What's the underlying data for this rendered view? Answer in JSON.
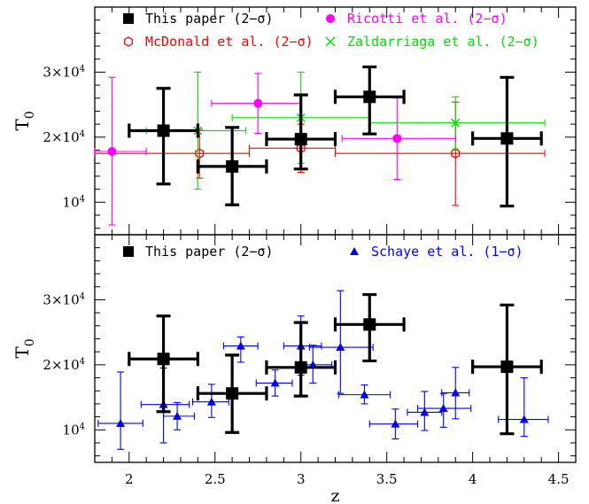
{
  "chart_data": [
    {
      "type": "scatter",
      "panel": "top",
      "ylabel": "T",
      "ylabel_sub": "0",
      "xlabel": "",
      "xlim": [
        1.8,
        4.6
      ],
      "ylim": [
        5000,
        40000
      ],
      "yticks": [
        {
          "value": 10000,
          "mant": "10",
          "exp": "4"
        },
        {
          "value": 20000,
          "mant": "2×10",
          "exp": "4"
        },
        {
          "value": 30000,
          "mant": "3×10",
          "exp": "4"
        }
      ],
      "legend": [
        {
          "label": "This paper (2−σ)",
          "marker": "square",
          "color": "#000000"
        },
        {
          "label": "Ricotti et al. (2−σ)",
          "marker": "circle",
          "color": "#ff00ff"
        },
        {
          "label": "McDonald et al. (2−σ)",
          "marker": "hexagon",
          "color": "#ff0000"
        },
        {
          "label": "Zaldarriaga et al. (2−σ)",
          "marker": "cross",
          "color": "#00dd00"
        }
      ],
      "series": [
        {
          "name": "McDonald et al. (2−σ)",
          "marker": "hexagon",
          "color": "#ff0000",
          "points": [
            {
              "x": 2.41,
              "y": 17500,
              "xlo": 1.8,
              "xhi": 2.7,
              "ylo": 13700,
              "yhi": 21200
            },
            {
              "x": 3.0,
              "y": 18300,
              "xlo": 2.7,
              "xhi": 3.2,
              "ylo": 14600,
              "yhi": 22000
            },
            {
              "x": 3.9,
              "y": 17500,
              "xlo": 3.2,
              "xhi": 4.42,
              "ylo": 9500,
              "yhi": 25400
            }
          ]
        },
        {
          "name": "Zaldarriaga et al. (2−σ)",
          "marker": "cross",
          "color": "#00dd00",
          "points": [
            {
              "x": 2.4,
              "y": 21000,
              "xlo": 2.1,
              "xhi": 2.68,
              "ylo": 12000,
              "yhi": 30000
            },
            {
              "x": 3.0,
              "y": 23000,
              "xlo": 2.6,
              "xhi": 3.4,
              "ylo": 16000,
              "yhi": 30000
            },
            {
              "x": 3.9,
              "y": 22200,
              "xlo": 3.4,
              "xhi": 4.42,
              "ylo": 18200,
              "yhi": 26200
            }
          ]
        },
        {
          "name": "Ricotti et al. (2−σ)",
          "marker": "circle",
          "color": "#ff00ff",
          "points": [
            {
              "x": 1.9,
              "y": 17800,
              "xlo": 1.8,
              "xhi": 2.1,
              "ylo": 6500,
              "yhi": 29200
            },
            {
              "x": 2.75,
              "y": 25200,
              "xlo": 2.48,
              "xhi": 3.0,
              "ylo": 20600,
              "yhi": 29800
            },
            {
              "x": 3.56,
              "y": 19800,
              "xlo": 3.24,
              "xhi": 3.9,
              "ylo": 13500,
              "yhi": 26000
            }
          ]
        },
        {
          "name": "This paper (2−σ)",
          "marker": "square",
          "color": "#000000",
          "points": [
            {
              "x": 2.2,
              "y": 21000,
              "xlo": 2.0,
              "xhi": 2.4,
              "ylo": 12800,
              "yhi": 27500
            },
            {
              "x": 2.6,
              "y": 15500,
              "xlo": 2.4,
              "xhi": 2.8,
              "ylo": 9600,
              "yhi": 21500
            },
            {
              "x": 3.0,
              "y": 19700,
              "xlo": 2.8,
              "xhi": 3.2,
              "ylo": 15100,
              "yhi": 26500
            },
            {
              "x": 3.4,
              "y": 26200,
              "xlo": 3.2,
              "xhi": 3.6,
              "ylo": 20500,
              "yhi": 30800
            },
            {
              "x": 4.2,
              "y": 19800,
              "xlo": 4.0,
              "xhi": 4.4,
              "ylo": 9400,
              "yhi": 29200
            }
          ]
        }
      ]
    },
    {
      "type": "scatter",
      "panel": "bottom",
      "ylabel": "T",
      "ylabel_sub": "0",
      "xlabel": "z",
      "xlim": [
        1.8,
        4.6
      ],
      "ylim": [
        5000,
        40000
      ],
      "xticks": [
        2,
        2.5,
        3,
        3.5,
        4,
        4.5
      ],
      "xtick_labels": [
        "2",
        "2.5",
        "3",
        "3.5",
        "4",
        "4.5"
      ],
      "yticks": [
        {
          "value": 10000,
          "mant": "10",
          "exp": "4"
        },
        {
          "value": 20000,
          "mant": "2×10",
          "exp": "4"
        },
        {
          "value": 30000,
          "mant": "3×10",
          "exp": "4"
        }
      ],
      "legend": [
        {
          "label": "This paper (2−σ)",
          "marker": "square",
          "color": "#000000"
        },
        {
          "label": "Schaye et al. (1−σ)",
          "marker": "triangle",
          "color": "#0000ff"
        }
      ],
      "series": [
        {
          "name": "Schaye et al. (1−σ)",
          "marker": "triangle",
          "color": "#0000ff",
          "points": [
            {
              "x": 1.95,
              "y": 11000,
              "xlo": 1.82,
              "xhi": 2.08,
              "ylo": 7000,
              "yhi": 18900
            },
            {
              "x": 2.2,
              "y": 13900,
              "xlo": 2.07,
              "xhi": 2.35,
              "ylo": 8000,
              "yhi": 19500
            },
            {
              "x": 2.28,
              "y": 12100,
              "xlo": 2.2,
              "xhi": 2.38,
              "ylo": 10000,
              "yhi": 14200
            },
            {
              "x": 2.48,
              "y": 14300,
              "xlo": 2.37,
              "xhi": 2.58,
              "ylo": 11900,
              "yhi": 17000
            },
            {
              "x": 2.65,
              "y": 22900,
              "xlo": 2.55,
              "xhi": 2.75,
              "ylo": 20400,
              "yhi": 24300
            },
            {
              "x": 2.85,
              "y": 17200,
              "xlo": 2.74,
              "xhi": 2.95,
              "ylo": 15200,
              "yhi": 19200
            },
            {
              "x": 3.0,
              "y": 22900,
              "xlo": 2.9,
              "xhi": 3.12,
              "ylo": 18400,
              "yhi": 27500
            },
            {
              "x": 3.07,
              "y": 20000,
              "xlo": 2.97,
              "xhi": 3.18,
              "ylo": 17200,
              "yhi": 23000
            },
            {
              "x": 3.23,
              "y": 22700,
              "xlo": 3.05,
              "xhi": 3.42,
              "ylo": 15600,
              "yhi": 31400
            },
            {
              "x": 3.37,
              "y": 15400,
              "xlo": 3.22,
              "xhi": 3.52,
              "ylo": 14000,
              "yhi": 16900
            },
            {
              "x": 3.55,
              "y": 10900,
              "xlo": 3.4,
              "xhi": 3.68,
              "ylo": 8600,
              "yhi": 13200
            },
            {
              "x": 3.72,
              "y": 12700,
              "xlo": 3.62,
              "xhi": 3.82,
              "ylo": 9900,
              "yhi": 15900
            },
            {
              "x": 3.83,
              "y": 13300,
              "xlo": 3.68,
              "xhi": 3.99,
              "ylo": 10400,
              "yhi": 15600
            },
            {
              "x": 3.9,
              "y": 15700,
              "xlo": 3.82,
              "xhi": 3.98,
              "ylo": 11700,
              "yhi": 19600
            },
            {
              "x": 4.3,
              "y": 11600,
              "xlo": 4.15,
              "xhi": 4.44,
              "ylo": 9000,
              "yhi": 18000
            }
          ]
        },
        {
          "name": "This paper (2−σ)",
          "marker": "square",
          "color": "#000000",
          "points": [
            {
              "x": 2.2,
              "y": 20900,
              "xlo": 2.0,
              "xhi": 2.4,
              "ylo": 12800,
              "yhi": 27500
            },
            {
              "x": 2.6,
              "y": 15600,
              "xlo": 2.4,
              "xhi": 2.8,
              "ylo": 9600,
              "yhi": 21500
            },
            {
              "x": 3.0,
              "y": 19600,
              "xlo": 2.8,
              "xhi": 3.2,
              "ylo": 15200,
              "yhi": 26500
            },
            {
              "x": 3.4,
              "y": 26200,
              "xlo": 3.2,
              "xhi": 3.6,
              "ylo": 20600,
              "yhi": 30800
            },
            {
              "x": 4.2,
              "y": 19700,
              "xlo": 4.0,
              "xhi": 4.4,
              "ylo": 9400,
              "yhi": 29200
            }
          ]
        }
      ]
    }
  ]
}
